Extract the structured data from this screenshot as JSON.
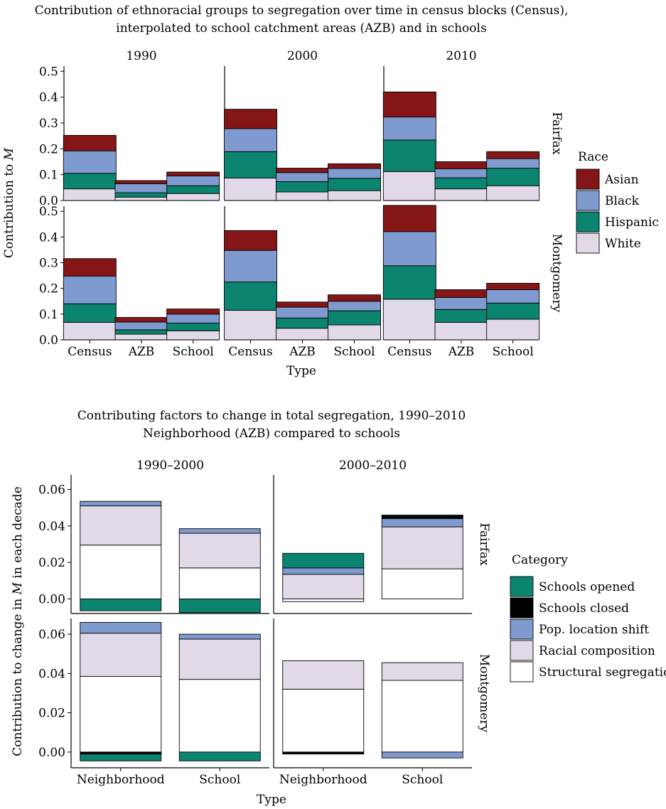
{
  "colors": {
    "Asian": "#841617",
    "Black": "#7f9acf",
    "Hispanic": "#0b8470",
    "White": "#e2d9e8",
    "Schools opened": "#0b8470",
    "Schools closed": "#000000",
    "Pop. location shift": "#7f9acf",
    "Racial composition": "#e2d9e8",
    "Structural segregation": "#ffffff"
  },
  "chart_data": [
    {
      "type": "bar",
      "stacked": true,
      "title": "Contribution of ethnoracial groups to segregation over time in census blocks (Census), interpolated to school catchment areas (AZB) and in schools",
      "title_lines": [
        "Contribution of ethnoracial groups to segregation over time in census blocks (Census),",
        "interpolated to school catchment areas (AZB) and in schools"
      ],
      "xlabel": "Type",
      "ylabel_prefix": "Contribution to ",
      "ylabel_var": "M",
      "ylim": [
        0,
        0.52
      ],
      "yticks": [
        "0.0",
        "0.1",
        "0.2",
        "0.3",
        "0.4",
        "0.5"
      ],
      "ytick_values": [
        0,
        0.1,
        0.2,
        0.3,
        0.4,
        0.5
      ],
      "categories": [
        "Census",
        "AZB",
        "School"
      ],
      "columns": [
        "1990",
        "2000",
        "2010"
      ],
      "rows": [
        "Fairfax",
        "Montgomery"
      ],
      "legend": {
        "title": "Race",
        "entries": [
          "Asian",
          "Black",
          "Hispanic",
          "White"
        ],
        "position": "right"
      },
      "stack_order": [
        "White",
        "Hispanic",
        "Black",
        "Asian"
      ],
      "grid": false,
      "panels": [
        {
          "row": "Fairfax",
          "column": "1990",
          "stacks": {
            "Census": {
              "White": 0.045,
              "Hispanic": 0.06,
              "Black": 0.087,
              "Asian": 0.06
            },
            "AZB": {
              "White": 0.013,
              "Hispanic": 0.017,
              "Black": 0.035,
              "Asian": 0.012
            },
            "School": {
              "White": 0.027,
              "Hispanic": 0.03,
              "Black": 0.038,
              "Asian": 0.015
            }
          }
        },
        {
          "row": "Fairfax",
          "column": "2000",
          "stacks": {
            "Census": {
              "White": 0.087,
              "Hispanic": 0.102,
              "Black": 0.089,
              "Asian": 0.075
            },
            "AZB": {
              "White": 0.033,
              "Hispanic": 0.04,
              "Black": 0.035,
              "Asian": 0.017
            },
            "School": {
              "White": 0.038,
              "Hispanic": 0.048,
              "Black": 0.038,
              "Asian": 0.018
            }
          }
        },
        {
          "row": "Fairfax",
          "column": "2010",
          "stacks": {
            "Census": {
              "White": 0.112,
              "Hispanic": 0.122,
              "Black": 0.089,
              "Asian": 0.097
            },
            "AZB": {
              "White": 0.045,
              "Hispanic": 0.043,
              "Black": 0.035,
              "Asian": 0.027
            },
            "School": {
              "White": 0.057,
              "Hispanic": 0.068,
              "Black": 0.037,
              "Asian": 0.027
            }
          }
        },
        {
          "row": "Montgomery",
          "column": "1990",
          "stacks": {
            "Census": {
              "White": 0.068,
              "Hispanic": 0.072,
              "Black": 0.108,
              "Asian": 0.068
            },
            "AZB": {
              "White": 0.022,
              "Hispanic": 0.017,
              "Black": 0.03,
              "Asian": 0.018
            },
            "School": {
              "White": 0.035,
              "Hispanic": 0.03,
              "Black": 0.035,
              "Asian": 0.02
            }
          }
        },
        {
          "row": "Montgomery",
          "column": "2000",
          "stacks": {
            "Census": {
              "White": 0.115,
              "Hispanic": 0.11,
              "Black": 0.123,
              "Asian": 0.077
            },
            "AZB": {
              "White": 0.045,
              "Hispanic": 0.04,
              "Black": 0.042,
              "Asian": 0.02
            },
            "School": {
              "White": 0.058,
              "Hispanic": 0.055,
              "Black": 0.037,
              "Asian": 0.025
            }
          }
        },
        {
          "row": "Montgomery",
          "column": "2010",
          "stacks": {
            "Census": {
              "White": 0.158,
              "Hispanic": 0.13,
              "Black": 0.133,
              "Asian": 0.102
            },
            "AZB": {
              "White": 0.068,
              "Hispanic": 0.05,
              "Black": 0.047,
              "Asian": 0.03
            },
            "School": {
              "White": 0.08,
              "Hispanic": 0.063,
              "Black": 0.052,
              "Asian": 0.025
            }
          }
        }
      ]
    },
    {
      "type": "bar",
      "stacked": true,
      "title": "Contributing factors to change in total segregation, 1990–2010",
      "subtitle": "Neighborhood (AZB) compared to schools",
      "xlabel": "Type",
      "ylabel_prefix": "Contribution to change in ",
      "ylabel_var": "M",
      "ylabel_suffix": " in each decade",
      "ylim": [
        -0.008,
        0.068
      ],
      "yticks": [
        "0.00",
        "0.02",
        "0.04",
        "0.06"
      ],
      "ytick_values": [
        0,
        0.02,
        0.04,
        0.06
      ],
      "categories": [
        "Neighborhood",
        "School"
      ],
      "columns": [
        "1990–2000",
        "2000–2010"
      ],
      "rows": [
        "Fairfax",
        "Montgomery"
      ],
      "legend": {
        "title": "Category",
        "entries": [
          "Schools opened",
          "Schools closed",
          "Pop. location shift",
          "Racial composition",
          "Structural segregation"
        ],
        "position": "right"
      },
      "stack_order": [
        "Structural segregation",
        "Racial composition",
        "Pop. location shift",
        "Schools closed",
        "Schools opened"
      ],
      "grid": false,
      "panels": [
        {
          "row": "Fairfax",
          "column": "1990–2000",
          "stacks": {
            "Neighborhood": {
              "Structural segregation": 0.0295,
              "Racial composition": 0.0215,
              "Pop. location shift": 0.0025,
              "Schools closed": 0.0,
              "Schools opened": -0.0065
            },
            "School": {
              "Structural segregation": 0.017,
              "Racial composition": 0.019,
              "Pop. location shift": 0.0025,
              "Schools closed": 0.0,
              "Schools opened": -0.0075
            }
          }
        },
        {
          "row": "Fairfax",
          "column": "2000–2010",
          "stacks": {
            "Neighborhood": {
              "Structural segregation": -0.0015,
              "Racial composition": 0.0135,
              "Pop. location shift": 0.0035,
              "Schools closed": 0.0,
              "Schools opened": 0.008
            },
            "School": {
              "Structural segregation": 0.0165,
              "Racial composition": 0.023,
              "Pop. location shift": 0.0045,
              "Schools closed": 0.0015,
              "Schools opened": 0.0005
            }
          }
        },
        {
          "row": "Montgomery",
          "column": "1990–2000",
          "stacks": {
            "Neighborhood": {
              "Structural segregation": 0.0385,
              "Racial composition": 0.022,
              "Pop. location shift": 0.0055,
              "Schools closed": -0.001,
              "Schools opened": -0.0035
            },
            "School": {
              "Structural segregation": 0.037,
              "Racial composition": 0.0205,
              "Pop. location shift": 0.0025,
              "Schools closed": 0.0,
              "Schools opened": -0.0045
            }
          }
        },
        {
          "row": "Montgomery",
          "column": "2000–2010",
          "stacks": {
            "Neighborhood": {
              "Structural segregation": 0.032,
              "Racial composition": 0.0145,
              "Pop. location shift": 0.0,
              "Schools closed": -0.001,
              "Schools opened": 0.0
            },
            "School": {
              "Structural segregation": 0.0365,
              "Racial composition": 0.009,
              "Pop. location shift": -0.003,
              "Schools closed": 0.0,
              "Schools opened": 0.0
            }
          }
        }
      ]
    }
  ]
}
